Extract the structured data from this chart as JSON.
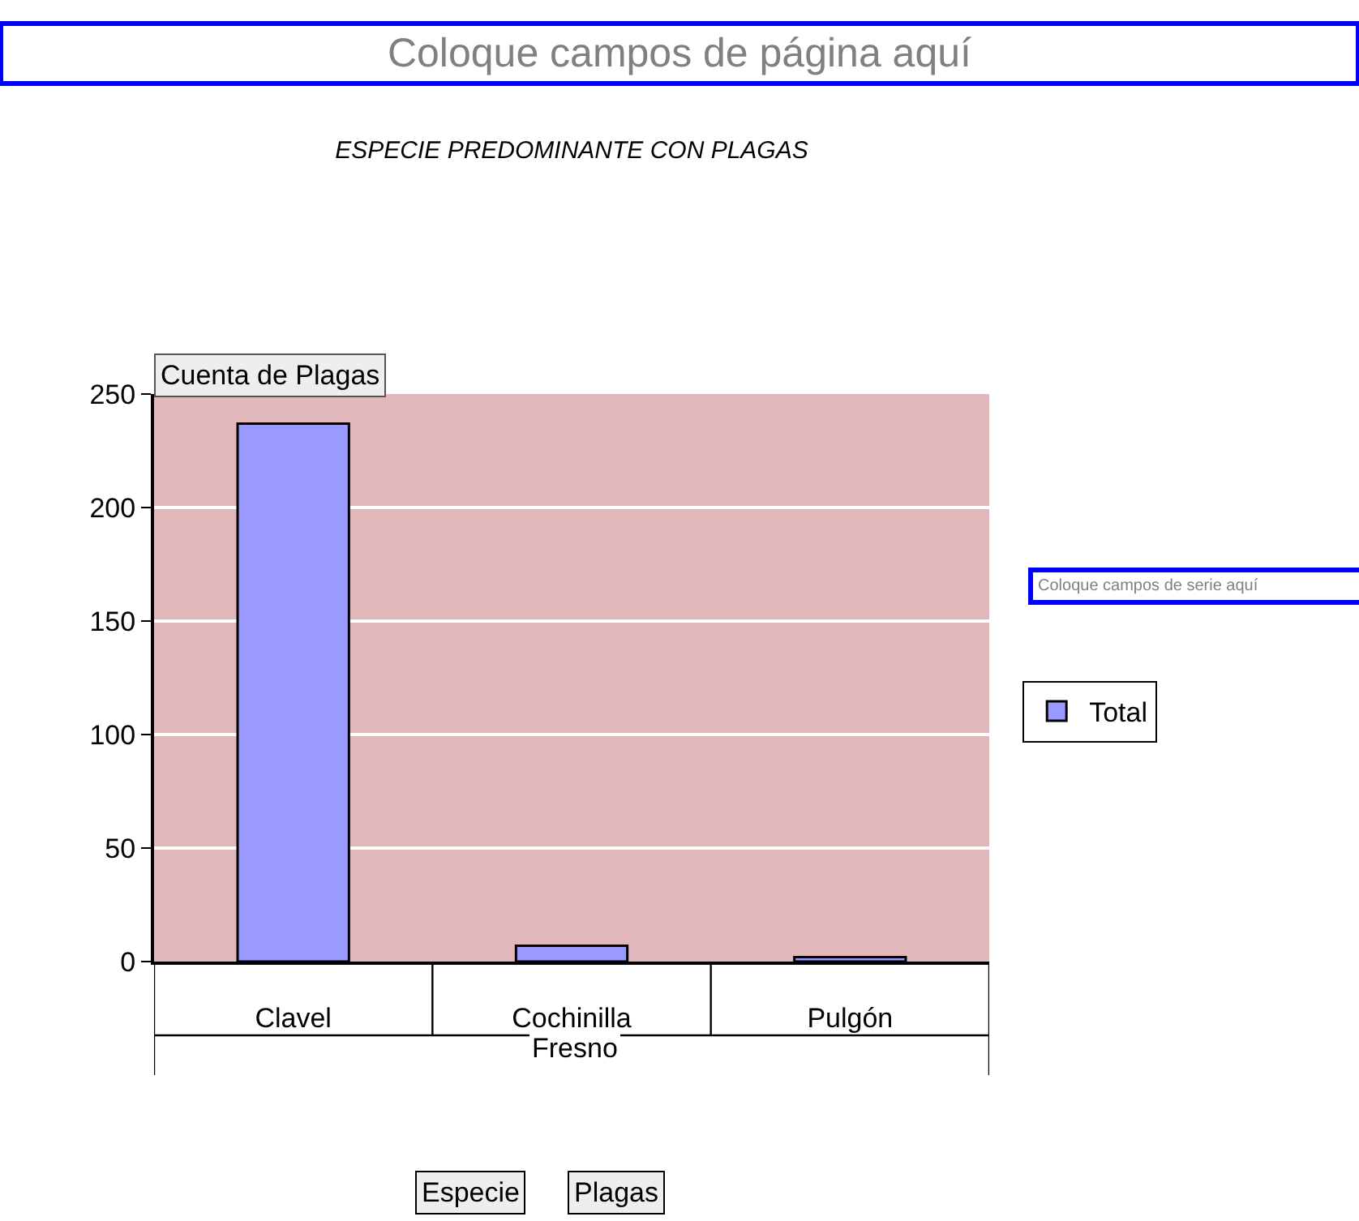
{
  "chart_data": {
    "type": "bar",
    "title": "ESPECIE PREDOMINANTE CON PLAGAS",
    "ylabel": "Cuenta de Plagas",
    "categories": [
      "Clavel",
      "Cochinilla",
      "Pulgón"
    ],
    "series": [
      {
        "name": "Total",
        "color": "#9999ff",
        "values": [
          237,
          7,
          2
        ]
      }
    ],
    "ylim": [
      0,
      250
    ],
    "yticks": [
      0,
      50,
      100,
      150,
      200,
      250
    ],
    "grid": "y",
    "legend": "right",
    "annotations": [
      "Coloque campos de página aquí",
      "Coloque campos de serie aquí",
      "Fresno",
      "Especie",
      "Plagas"
    ]
  }
}
